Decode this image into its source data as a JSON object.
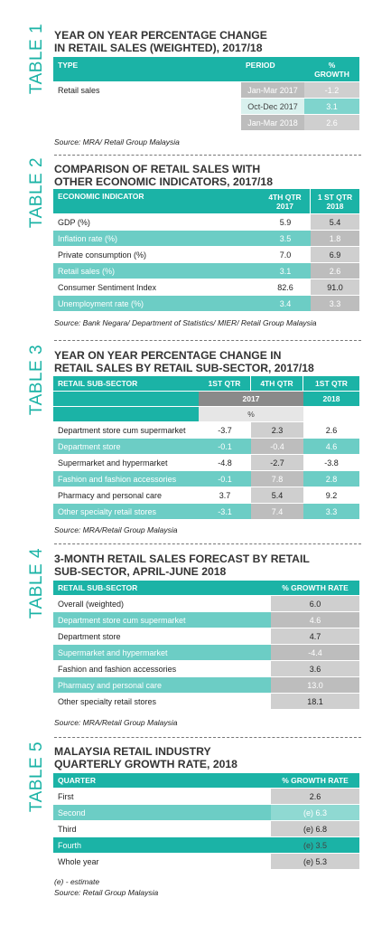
{
  "table1": {
    "label": "TABLE 1",
    "title_line1": "YEAR ON YEAR PERCENTAGE CHANGE",
    "title_line2": "IN RETAIL SALES (WEIGHTED), 2017/18",
    "headers": [
      "TYPE",
      "PERIOD",
      "%",
      "GROWTH"
    ],
    "row_label": "Retail sales",
    "rows": [
      {
        "period": "Jan-Mar 2017",
        "growth": "-1.2"
      },
      {
        "period": "Oct-Dec 2017",
        "growth": "3.1"
      },
      {
        "period": "Jan-Mar 2018",
        "growth": "2.6"
      }
    ],
    "source": "Source: MRA/ Retail Group Malaysia"
  },
  "table2": {
    "label": "TABLE 2",
    "title_line1": "COMPARISON OF RETAIL SALES WITH",
    "title_line2": "OTHER ECONOMIC INDICATORS, 2017/18",
    "headers": [
      "ECONOMIC INDICATOR",
      "4TH QTR",
      "2017",
      "1 ST QTR",
      "2018"
    ],
    "rows": [
      {
        "name": "GDP (%)",
        "q4": "5.9",
        "q1": "5.4"
      },
      {
        "name": "Inflation rate (%)",
        "q4": "3.5",
        "q1": "1.8"
      },
      {
        "name": "Private consumption (%)",
        "q4": "7.0",
        "q1": "6.9"
      },
      {
        "name": "Retail sales (%)",
        "q4": "3.1",
        "q1": "2.6"
      },
      {
        "name": "Consumer Sentiment Index",
        "q4": "82.6",
        "q1": "91.0"
      },
      {
        "name": "Unemployment rate (%)",
        "q4": "3.4",
        "q1": "3.3"
      }
    ],
    "source": "Source: Bank Negara/ Department of Statistics/ MIER/ Retail Group Malaysia"
  },
  "table3": {
    "label": "TABLE 3",
    "title_line1": "YEAR ON YEAR PERCENTAGE CHANGE IN",
    "title_line2": "RETAIL SALES BY RETAIL SUB-SECTOR, 2017/18",
    "headers": [
      "RETAIL SUB-SECTOR",
      "1ST QTR",
      "4TH QTR",
      "1ST QTR",
      "2017",
      "2018",
      "%"
    ],
    "rows": [
      {
        "name": "Department store cum supermarket",
        "a": "-3.7",
        "b": "2.3",
        "c": "2.6"
      },
      {
        "name": "Department store",
        "a": "-0.1",
        "b": "-0.4",
        "c": "4.6"
      },
      {
        "name": "Supermarket and hypermarket",
        "a": "-4.8",
        "b": "-2.7",
        "c": "-3.8"
      },
      {
        "name": "Fashion and fashion accessories",
        "a": "-0.1",
        "b": "7.8",
        "c": "2.8"
      },
      {
        "name": "Pharmacy and personal care",
        "a": "3.7",
        "b": "5.4",
        "c": "9.2"
      },
      {
        "name": "Other specialty retail stores",
        "a": "-3.1",
        "b": "7.4",
        "c": "3.3"
      }
    ],
    "source": "Source: MRA/Retail Group Malaysia"
  },
  "table4": {
    "label": "TABLE 4",
    "title_line1": "3-MONTH RETAIL SALES FORECAST BY RETAIL",
    "title_line2": "SUB-SECTOR, APRIL-JUNE 2018",
    "headers": [
      "RETAIL SUB-SECTOR",
      "% GROWTH RATE"
    ],
    "rows": [
      {
        "name": "Overall (weighted)",
        "v": "6.0"
      },
      {
        "name": "Department store cum supermarket",
        "v": "4.6"
      },
      {
        "name": "Department store",
        "v": "4.7"
      },
      {
        "name": "Supermarket and hypermarket",
        "v": "-4.4"
      },
      {
        "name": "Fashion and fashion accessories",
        "v": "3.6"
      },
      {
        "name": "Pharmacy and personal care",
        "v": "13.0"
      },
      {
        "name": "Other specialty retail stores",
        "v": "18.1"
      }
    ],
    "source": "Source: MRA/Retail Group Malaysia"
  },
  "table5": {
    "label": "TABLE 5",
    "title_line1": "MALAYSIA RETAIL INDUSTRY",
    "title_line2": "QUARTERLY GROWTH RATE, 2018",
    "headers": [
      "QUARTER",
      "% GROWTH RATE"
    ],
    "rows": [
      {
        "name": "First",
        "v": "2.6"
      },
      {
        "name": "Second",
        "v": "(e) 6.3"
      },
      {
        "name": "Third",
        "v": "(e) 6.8"
      },
      {
        "name": "Fourth",
        "v": "(e) 3.5"
      },
      {
        "name": "Whole year",
        "v": "(e) 5.3"
      }
    ],
    "note": "(e) - estimate",
    "source": "Source: Retail Group Malaysia"
  }
}
